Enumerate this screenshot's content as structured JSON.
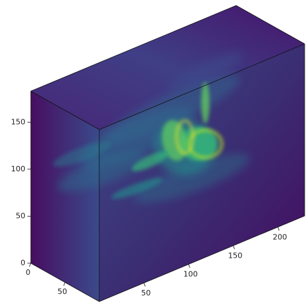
{
  "chart_data": {
    "type": "volume3d",
    "xlim": [
      0,
      230
    ],
    "xticks": [
      50,
      100,
      150,
      200
    ],
    "ylim": [
      0,
      100
    ],
    "yticks": [
      0,
      50
    ],
    "zlim": [
      0,
      183
    ],
    "zticks": [
      0,
      50,
      100,
      150
    ]
  }
}
